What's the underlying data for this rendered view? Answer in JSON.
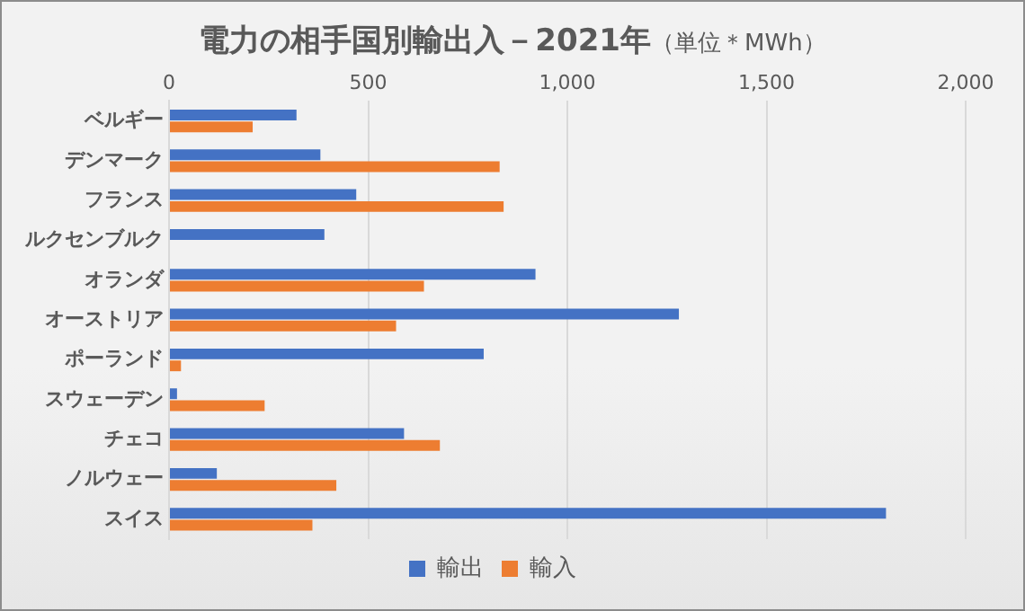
{
  "chart_data": {
    "type": "bar",
    "orientation": "horizontal",
    "title": "電力の相手国別輸出入－2021年",
    "subtitle": "（単位＊MWh）",
    "categories": [
      "ベルギー",
      "デンマーク",
      "フランス",
      "ルクセンブルク",
      "オランダ",
      "オーストリア",
      "ポーランド",
      "スウェーデン",
      "チェコ",
      "ノルウェー",
      "スイス"
    ],
    "series": [
      {
        "name": "輸出",
        "color": "#4472c4",
        "values": [
          320,
          380,
          470,
          390,
          920,
          1280,
          790,
          20,
          590,
          120,
          1800
        ]
      },
      {
        "name": "輸入",
        "color": "#ed7d31",
        "values": [
          210,
          830,
          840,
          0,
          640,
          570,
          30,
          240,
          680,
          420,
          360
        ]
      }
    ],
    "xlim": [
      0,
      2000
    ],
    "xticks": [
      {
        "value": 0,
        "label": "0"
      },
      {
        "value": 500,
        "label": "500"
      },
      {
        "value": 1000,
        "label": "1,000"
      },
      {
        "value": 1500,
        "label": "1,500"
      },
      {
        "value": 2000,
        "label": "2,000"
      }
    ],
    "grid": "x",
    "legend": "bottom"
  }
}
